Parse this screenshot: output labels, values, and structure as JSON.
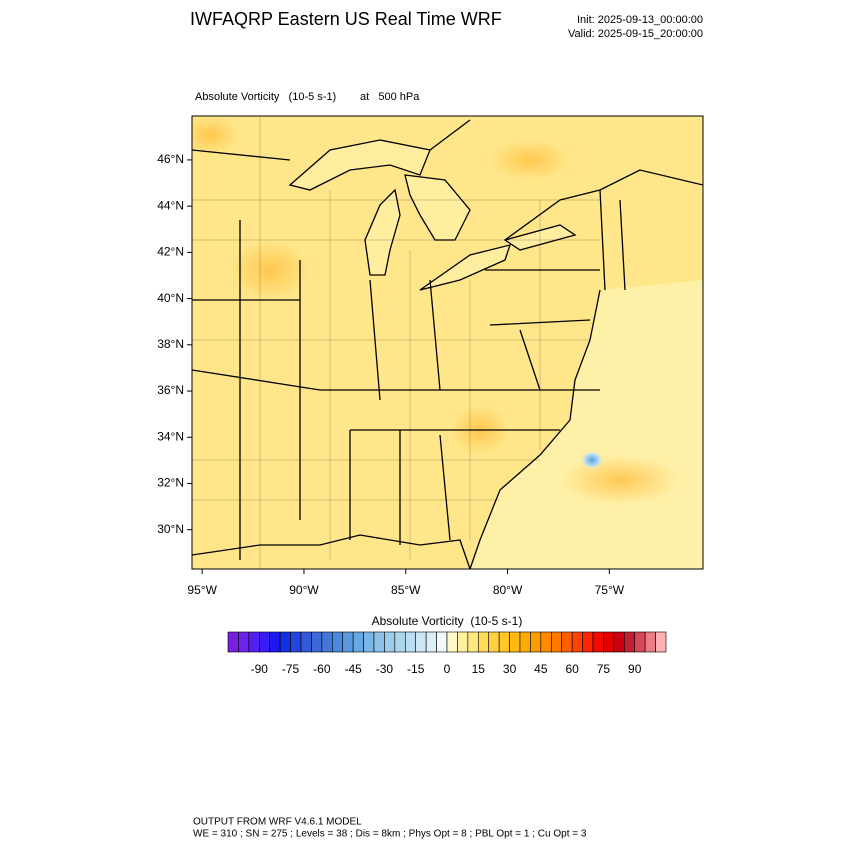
{
  "header": {
    "title": "IWFAQRP Eastern US Real Time WRF",
    "init": "Init: 2025-09-13_00:00:00",
    "valid": "Valid: 2025-09-15_20:00:00"
  },
  "map": {
    "field": "Absolute Vorticity   (10-5 s-1)",
    "level": "at   500 hPa",
    "latlim": [
      28.3,
      47.9
    ],
    "lonlim": [
      -95.5,
      -70.4
    ],
    "lat_ticks": [
      {
        "value": 30,
        "label": "30°N"
      },
      {
        "value": 32,
        "label": "32°N"
      },
      {
        "value": 34,
        "label": "34°N"
      },
      {
        "value": 36,
        "label": "36°N"
      },
      {
        "value": 38,
        "label": "38°N"
      },
      {
        "value": 40,
        "label": "40°N"
      },
      {
        "value": 42,
        "label": "42°N"
      },
      {
        "value": 44,
        "label": "44°N"
      },
      {
        "value": 46,
        "label": "46°N"
      }
    ],
    "lon_ticks": [
      {
        "value": -95,
        "label": "95°W"
      },
      {
        "value": -90,
        "label": "90°W"
      },
      {
        "value": -85,
        "label": "85°W"
      },
      {
        "value": -80,
        "label": "80°W"
      },
      {
        "value": -75,
        "label": "75°W"
      }
    ]
  },
  "colorbar": {
    "title": "Absolute Vorticity  (10-5 s-1)",
    "lim": [
      -105,
      105
    ],
    "ticks": [
      -90,
      -75,
      -60,
      -45,
      -30,
      -15,
      0,
      15,
      30,
      45,
      60,
      75,
      90
    ],
    "colors": [
      "#7a1fe0",
      "#6a24ea",
      "#5420f0",
      "#3a1cf4",
      "#1c18f0",
      "#1030e6",
      "#2446de",
      "#3358d8",
      "#3d68d8",
      "#4478d8",
      "#4c88de",
      "#5a98e0",
      "#6aa8e2",
      "#7ab6e6",
      "#8cc2e8",
      "#9ccce8",
      "#acd6ee",
      "#bcdef2",
      "#cce6f6",
      "#dceef8",
      "#f4f8f8",
      "#fff8c8",
      "#fff0a0",
      "#ffe880",
      "#ffdc58",
      "#ffd040",
      "#ffc828",
      "#ffbc10",
      "#ffac00",
      "#ff9c00",
      "#ff8c00",
      "#ff7800",
      "#ff6000",
      "#ff4400",
      "#ff2400",
      "#f00c00",
      "#e00000",
      "#cc0010",
      "#c02030",
      "#d84858",
      "#ec7c88",
      "#ffb0b0"
    ]
  },
  "footer": {
    "line1": "OUTPUT FROM WRF V4.6.1 MODEL",
    "line2": "WE = 310 ; SN = 275 ; Levels = 38 ; Dis = 8km ; Phys Opt = 8 ; PBL Opt = 1 ; Cu Opt = 3"
  }
}
